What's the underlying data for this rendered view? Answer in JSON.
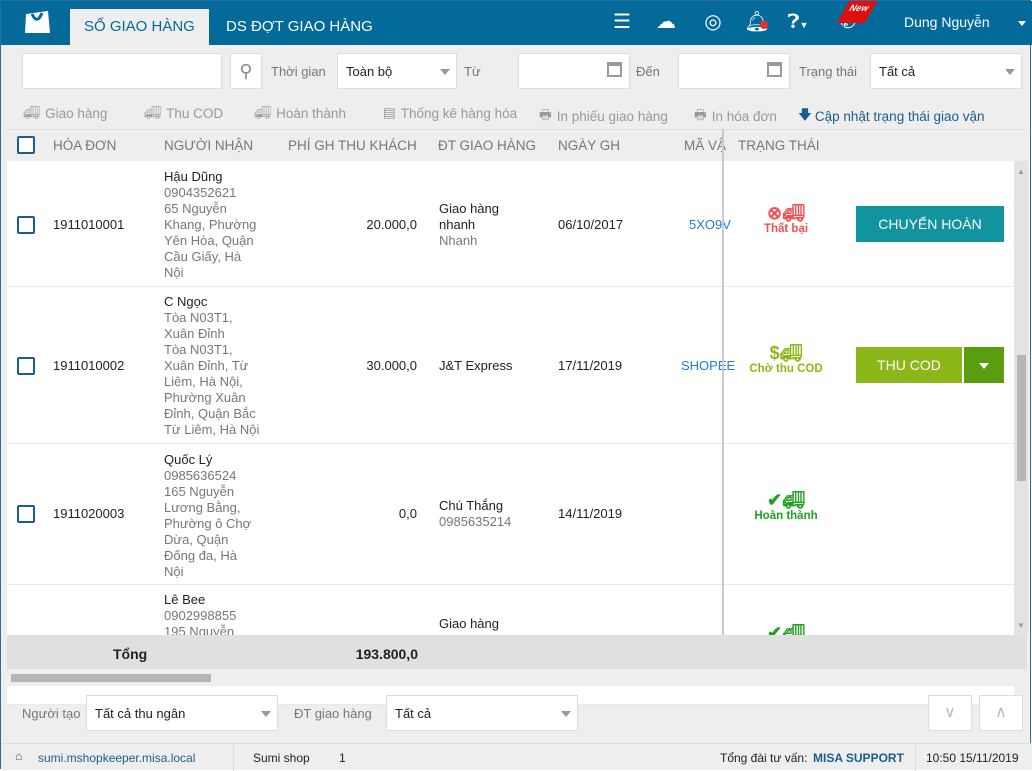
{
  "header": {
    "tabs": [
      {
        "label": "SỔ GIAO HÀNG",
        "active": true
      },
      {
        "label": "DS ĐỢT GIAO HÀNG",
        "active": false
      }
    ],
    "icons": [
      "menu-icon",
      "cloud-sync-icon",
      "swirl-logo-icon",
      "bell-icon",
      "help-icon",
      "phone-icon"
    ],
    "new_badge": "New",
    "user": "Dung Nguyễn",
    "color": "#036a99"
  },
  "filters": {
    "search_value": "",
    "time_label": "Thời gian",
    "time_value": "Toàn bộ",
    "from_label": "Từ",
    "from_value": "",
    "to_label": "Đến",
    "to_value": "",
    "status_label": "Trạng thái",
    "status_value": "Tất cả"
  },
  "toolbar": {
    "deliver": "Giao hàng",
    "cod": "Thu COD",
    "complete": "Hoàn thành",
    "stats": "Thống kê hàng hóa",
    "print_slip": "In phiếu giao hàng",
    "print_invoice": "In hóa đơn",
    "update_status": "Cập nhật trạng thái giao vận"
  },
  "table": {
    "columns": [
      "HÓA ĐƠN",
      "NGƯỜI NHẬN",
      "PHÍ GH THU KHÁCH",
      "ĐT GIAO HÀNG",
      "NGÀY GH",
      "MÃ VẬ",
      "TRẠNG THÁI"
    ],
    "rows": [
      {
        "invoice": "1911010001",
        "name": "Hậu Dũng",
        "detail": [
          "0904352621",
          "65 Nguyễn",
          "Khang, Phường",
          "Yên Hòa, Quận",
          "Cầu Giấy, Hà",
          "Nội"
        ],
        "fee": "20.000,0",
        "partner": [
          "Giao hàng",
          "nhanh"
        ],
        "partner_sub": "Nhanh",
        "date": "06/10/2017",
        "tracking": "5XO9V",
        "status": "Thất bại",
        "status_color": "#f0504f",
        "action": "CHUYỂN HOÀN",
        "action_color": "#1193a0"
      },
      {
        "invoice": "1911010002",
        "name": "C Ngọc",
        "detail": [
          "Tòa N03T1,",
          "Xuân Đỉnh",
          "Tòa N03T1,",
          "Xuân Đỉnh, Từ",
          "Liêm, Hà Nội,",
          "Phường Xuân",
          "Đỉnh, Quận Bắc",
          "Từ Liêm, Hà Nội"
        ],
        "fee": "30.000,0",
        "partner": [
          "J&T Express"
        ],
        "partner_sub": "",
        "date": "17/11/2019",
        "tracking": "SHOPEE",
        "status": "Chờ thu COD",
        "status_color": "#8cb718",
        "action": "THU COD",
        "action_color": "#8cb718",
        "action_dd_color": "#5a9e0f"
      },
      {
        "invoice": "1911020003",
        "name": "Quốc Lý",
        "detail": [
          "0985636524",
          "165 Nguyễn",
          "Lương Bằng,",
          "Phường ô Chợ",
          "Dừa, Quận",
          "Đống đa, Hà",
          "Nội"
        ],
        "fee": "0,0",
        "partner": [
          "Chú Thắng"
        ],
        "partner_sub": "0985635214",
        "date": "14/11/2019",
        "tracking": "",
        "status": "Hoàn thành",
        "status_color": "#22a022"
      },
      {
        "name": "Lê Bee",
        "detail": [
          "0902998855",
          "195 Nguyễn"
        ],
        "partner": [
          "Giao hàng"
        ]
      }
    ],
    "total_label": "Tổng",
    "total_fee": "193.800,0"
  },
  "bottom_filters": {
    "creator_label": "Người tạo",
    "creator_value": "Tất cả thu ngân",
    "partner_label": "ĐT giao hàng",
    "partner_value": "Tất cả"
  },
  "statusbar": {
    "url": "sumi.mshopkeeper.misa.local",
    "shop": "Sumi shop",
    "count": "1",
    "support_label": "Tổng đài tư vấn:",
    "support_name": "MISA SUPPORT",
    "datetime": "10:50 15/11/2019"
  }
}
